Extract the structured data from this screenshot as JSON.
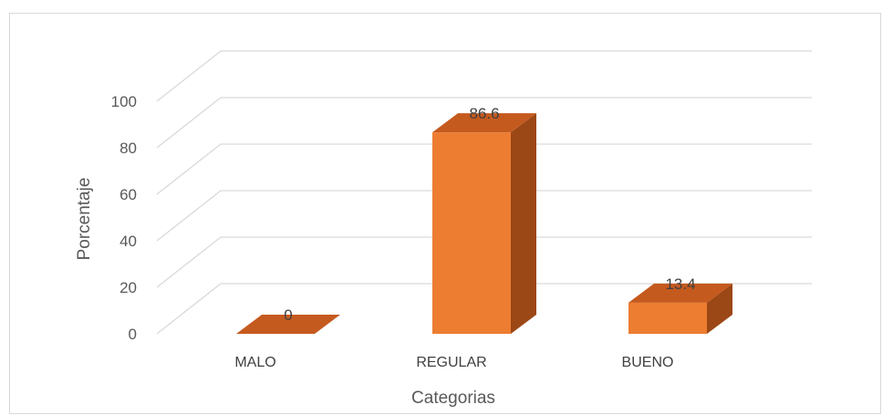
{
  "chart_data": {
    "type": "bar",
    "categories": [
      "MALO",
      "REGULAR",
      "BUENO"
    ],
    "values": [
      0,
      86.6,
      13.4
    ],
    "data_labels": [
      "0",
      "86.6",
      "13.4"
    ],
    "xlabel": "Categorias",
    "ylabel": "Porcentaje",
    "ylim": [
      0,
      100
    ],
    "yticks": [
      "0",
      "20",
      "40",
      "60",
      "80",
      "100"
    ],
    "grid": true,
    "three_d": true,
    "colors": {
      "bar_front": "#ed7d31",
      "bar_top": "#c55a1f",
      "bar_side": "#9c4716",
      "grid": "#d9d9d9"
    }
  }
}
